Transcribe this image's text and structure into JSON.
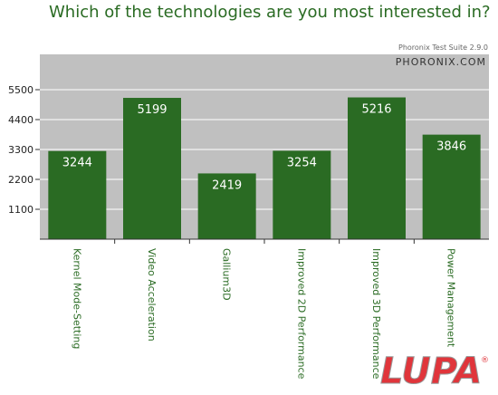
{
  "chart_data": {
    "type": "bar",
    "title": "Which of the technologies are you most interested in?",
    "categories": [
      "Kernel Mode-Setting",
      "Video Acceleration",
      "Gallium3D",
      "Improved 2D Performance",
      "Improved 3D Performance",
      "Power Management"
    ],
    "values": [
      3244,
      5199,
      2419,
      3254,
      5216,
      3846
    ],
    "yticks": [
      1100,
      2200,
      3300,
      4400,
      5500
    ],
    "ylim": [
      0,
      6800
    ],
    "xlabel": "",
    "ylabel": "",
    "grid": true
  },
  "suite_label": "Phoronix Test Suite 2.9.0",
  "brand_label": "PHORONIX.COM",
  "watermark": {
    "text": "LUPA",
    "mark": "®"
  },
  "colors": {
    "bar": "#2a6b23",
    "plot_bg": "#c0c0c0",
    "title": "#2a6b23",
    "logo": "#e0353b"
  }
}
